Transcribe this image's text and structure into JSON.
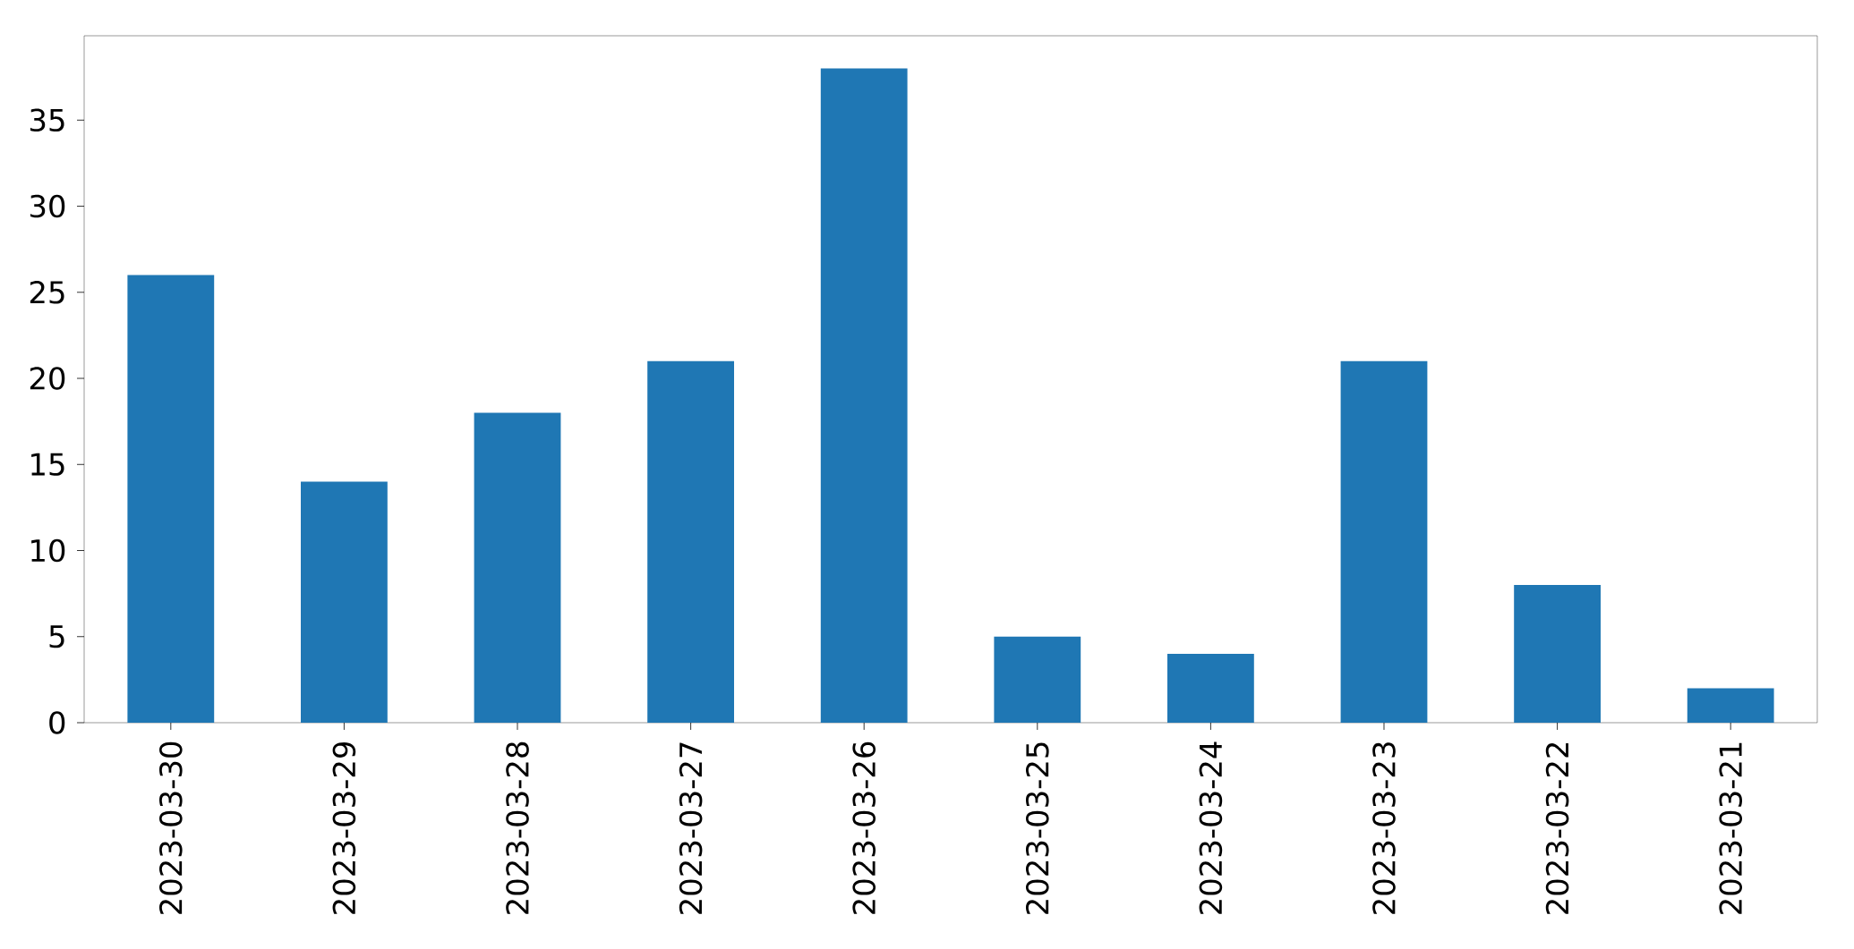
{
  "chart_data": {
    "type": "bar",
    "categories": [
      "2023-03-30",
      "2023-03-29",
      "2023-03-28",
      "2023-03-27",
      "2023-03-26",
      "2023-03-25",
      "2023-03-24",
      "2023-03-23",
      "2023-03-22",
      "2023-03-21"
    ],
    "values": [
      26,
      14,
      18,
      21,
      38,
      5,
      4,
      21,
      8,
      2
    ],
    "color": "#1f77b4",
    "ylim": [
      0,
      39.9
    ],
    "yticks": [
      0,
      5,
      10,
      15,
      20,
      25,
      30,
      35
    ]
  }
}
